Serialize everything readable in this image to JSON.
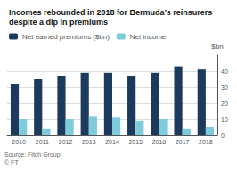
{
  "chart_data": {
    "type": "bar",
    "title": "Incomes rebounded in 2018 for Bermuda’s reinsurers despite a dip in premiums",
    "ylabel": "$bn",
    "annotations": [
      "Source: Fitch Group\n© FT"
    ],
    "categories": [
      "2010",
      "2011",
      "2012",
      "2013",
      "2014",
      "2015",
      "2016",
      "2017",
      "2018"
    ],
    "series": [
      {
        "name": "Net earned premiums ($bn)",
        "color": "#1b3a5c",
        "values": [
          32,
          35,
          37,
          39,
          39,
          37,
          39,
          43,
          41
        ]
      },
      {
        "name": "Net income",
        "color": "#7ecbdc",
        "values": [
          10,
          4,
          10,
          12,
          11,
          9,
          10,
          4,
          5
        ]
      }
    ],
    "ylim": [
      0,
      50
    ],
    "yticks": [
      0,
      10,
      20,
      30,
      40
    ],
    "grid": true,
    "legend": "upper left"
  }
}
